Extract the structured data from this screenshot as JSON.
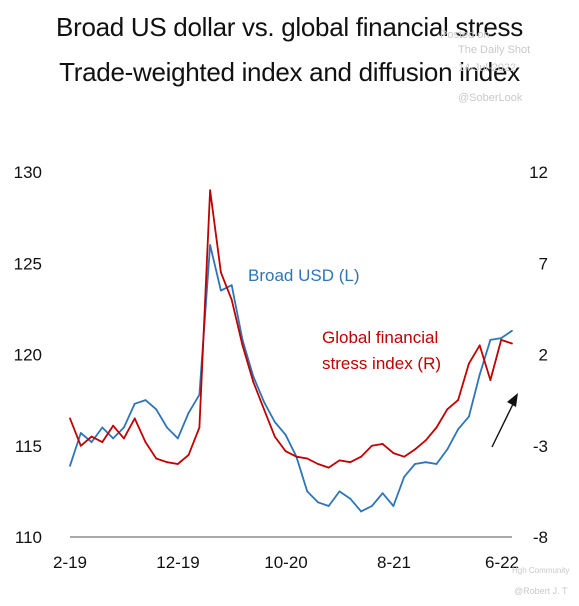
{
  "header": {
    "title": "Broad US dollar vs. global financial stress",
    "subtitle": "Trade-weighted index and diffusion index"
  },
  "watermark": {
    "line1": "Posted on",
    "line2": "The Daily Shot",
    "line3": "14-Jul-2022",
    "line4": "@SoberLook",
    "line5": "Hgh Community",
    "credit": "@Robert J. T"
  },
  "chart_data": {
    "type": "line",
    "title": "Broad US dollar vs. global financial stress",
    "subtitle": "Trade-weighted index and diffusion index",
    "x_tick_labels": [
      "2-19",
      "12-19",
      "10-20",
      "8-21",
      "6-22"
    ],
    "x_range": [
      "2019-02",
      "2022-07"
    ],
    "y_left": {
      "ticks": [
        "130",
        "125",
        "120",
        "115",
        "110"
      ],
      "ylim": [
        110,
        130
      ]
    },
    "y_right": {
      "ticks": [
        "12",
        "7",
        "2",
        "-3",
        "-8"
      ],
      "ylim": [
        -8,
        12
      ]
    },
    "grid": false,
    "legend": "inline annotations",
    "annotations": [
      {
        "text": "Broad USD (L)",
        "color": "#2e75b6"
      },
      {
        "text": "Global financial",
        "color": "#c00000"
      },
      {
        "text": "stress index (R)",
        "color": "#c00000"
      }
    ],
    "arrow": "upward arrow near right edge",
    "series": [
      {
        "name": "Broad USD (L)",
        "axis": "left",
        "color": "#2e75b6",
        "points": [
          [
            "2019-02",
            113.9
          ],
          [
            "2019-03",
            115.7
          ],
          [
            "2019-04",
            115.2
          ],
          [
            "2019-05",
            116.0
          ],
          [
            "2019-06",
            115.4
          ],
          [
            "2019-07",
            116.0
          ],
          [
            "2019-08",
            117.3
          ],
          [
            "2019-09",
            117.5
          ],
          [
            "2019-10",
            117.0
          ],
          [
            "2019-11",
            116.0
          ],
          [
            "2019-12",
            115.4
          ],
          [
            "2020-01",
            116.8
          ],
          [
            "2020-02",
            117.8
          ],
          [
            "2020-03",
            126.0
          ],
          [
            "2020-04",
            123.5
          ],
          [
            "2020-05",
            123.8
          ],
          [
            "2020-06",
            120.8
          ],
          [
            "2020-07",
            118.8
          ],
          [
            "2020-08",
            117.4
          ],
          [
            "2020-09",
            116.3
          ],
          [
            "2020-10",
            115.6
          ],
          [
            "2020-11",
            114.4
          ],
          [
            "2020-12",
            112.5
          ],
          [
            "2021-01",
            111.9
          ],
          [
            "2021-02",
            111.7
          ],
          [
            "2021-03",
            112.5
          ],
          [
            "2021-04",
            112.1
          ],
          [
            "2021-05",
            111.4
          ],
          [
            "2021-06",
            111.7
          ],
          [
            "2021-07",
            112.4
          ],
          [
            "2021-08",
            111.7
          ],
          [
            "2021-09",
            113.3
          ],
          [
            "2021-10",
            114.0
          ],
          [
            "2021-11",
            114.1
          ],
          [
            "2021-12",
            114.0
          ],
          [
            "2022-01",
            114.8
          ],
          [
            "2022-02",
            115.9
          ],
          [
            "2022-03",
            116.6
          ],
          [
            "2022-04",
            118.9
          ],
          [
            "2022-05",
            120.8
          ],
          [
            "2022-06",
            120.9
          ],
          [
            "2022-07",
            121.3
          ]
        ]
      },
      {
        "name": "Global financial stress index (R)",
        "axis": "right",
        "color": "#c00000",
        "points": [
          [
            "2019-02",
            -1.5
          ],
          [
            "2019-03",
            -3.0
          ],
          [
            "2019-04",
            -2.5
          ],
          [
            "2019-05",
            -2.8
          ],
          [
            "2019-06",
            -1.9
          ],
          [
            "2019-07",
            -2.6
          ],
          [
            "2019-08",
            -1.5
          ],
          [
            "2019-09",
            -2.8
          ],
          [
            "2019-10",
            -3.7
          ],
          [
            "2019-11",
            -3.9
          ],
          [
            "2019-12",
            -4.0
          ],
          [
            "2020-01",
            -3.5
          ],
          [
            "2020-02",
            -2.0
          ],
          [
            "2020-03",
            11.0
          ],
          [
            "2020-04",
            6.5
          ],
          [
            "2020-05",
            5.0
          ],
          [
            "2020-06",
            2.5
          ],
          [
            "2020-07",
            0.5
          ],
          [
            "2020-08",
            -1.0
          ],
          [
            "2020-09",
            -2.5
          ],
          [
            "2020-10",
            -3.3
          ],
          [
            "2020-11",
            -3.6
          ],
          [
            "2020-12",
            -3.7
          ],
          [
            "2021-01",
            -4.0
          ],
          [
            "2021-02",
            -4.2
          ],
          [
            "2021-03",
            -3.8
          ],
          [
            "2021-04",
            -3.9
          ],
          [
            "2021-05",
            -3.6
          ],
          [
            "2021-06",
            -3.0
          ],
          [
            "2021-07",
            -2.9
          ],
          [
            "2021-08",
            -3.4
          ],
          [
            "2021-09",
            -3.6
          ],
          [
            "2021-10",
            -3.2
          ],
          [
            "2021-11",
            -2.7
          ],
          [
            "2021-12",
            -2.0
          ],
          [
            "2022-01",
            -1.0
          ],
          [
            "2022-02",
            -0.5
          ],
          [
            "2022-03",
            1.5
          ],
          [
            "2022-04",
            2.5
          ],
          [
            "2022-05",
            0.6
          ],
          [
            "2022-06",
            2.8
          ],
          [
            "2022-07",
            2.6
          ]
        ]
      }
    ]
  }
}
